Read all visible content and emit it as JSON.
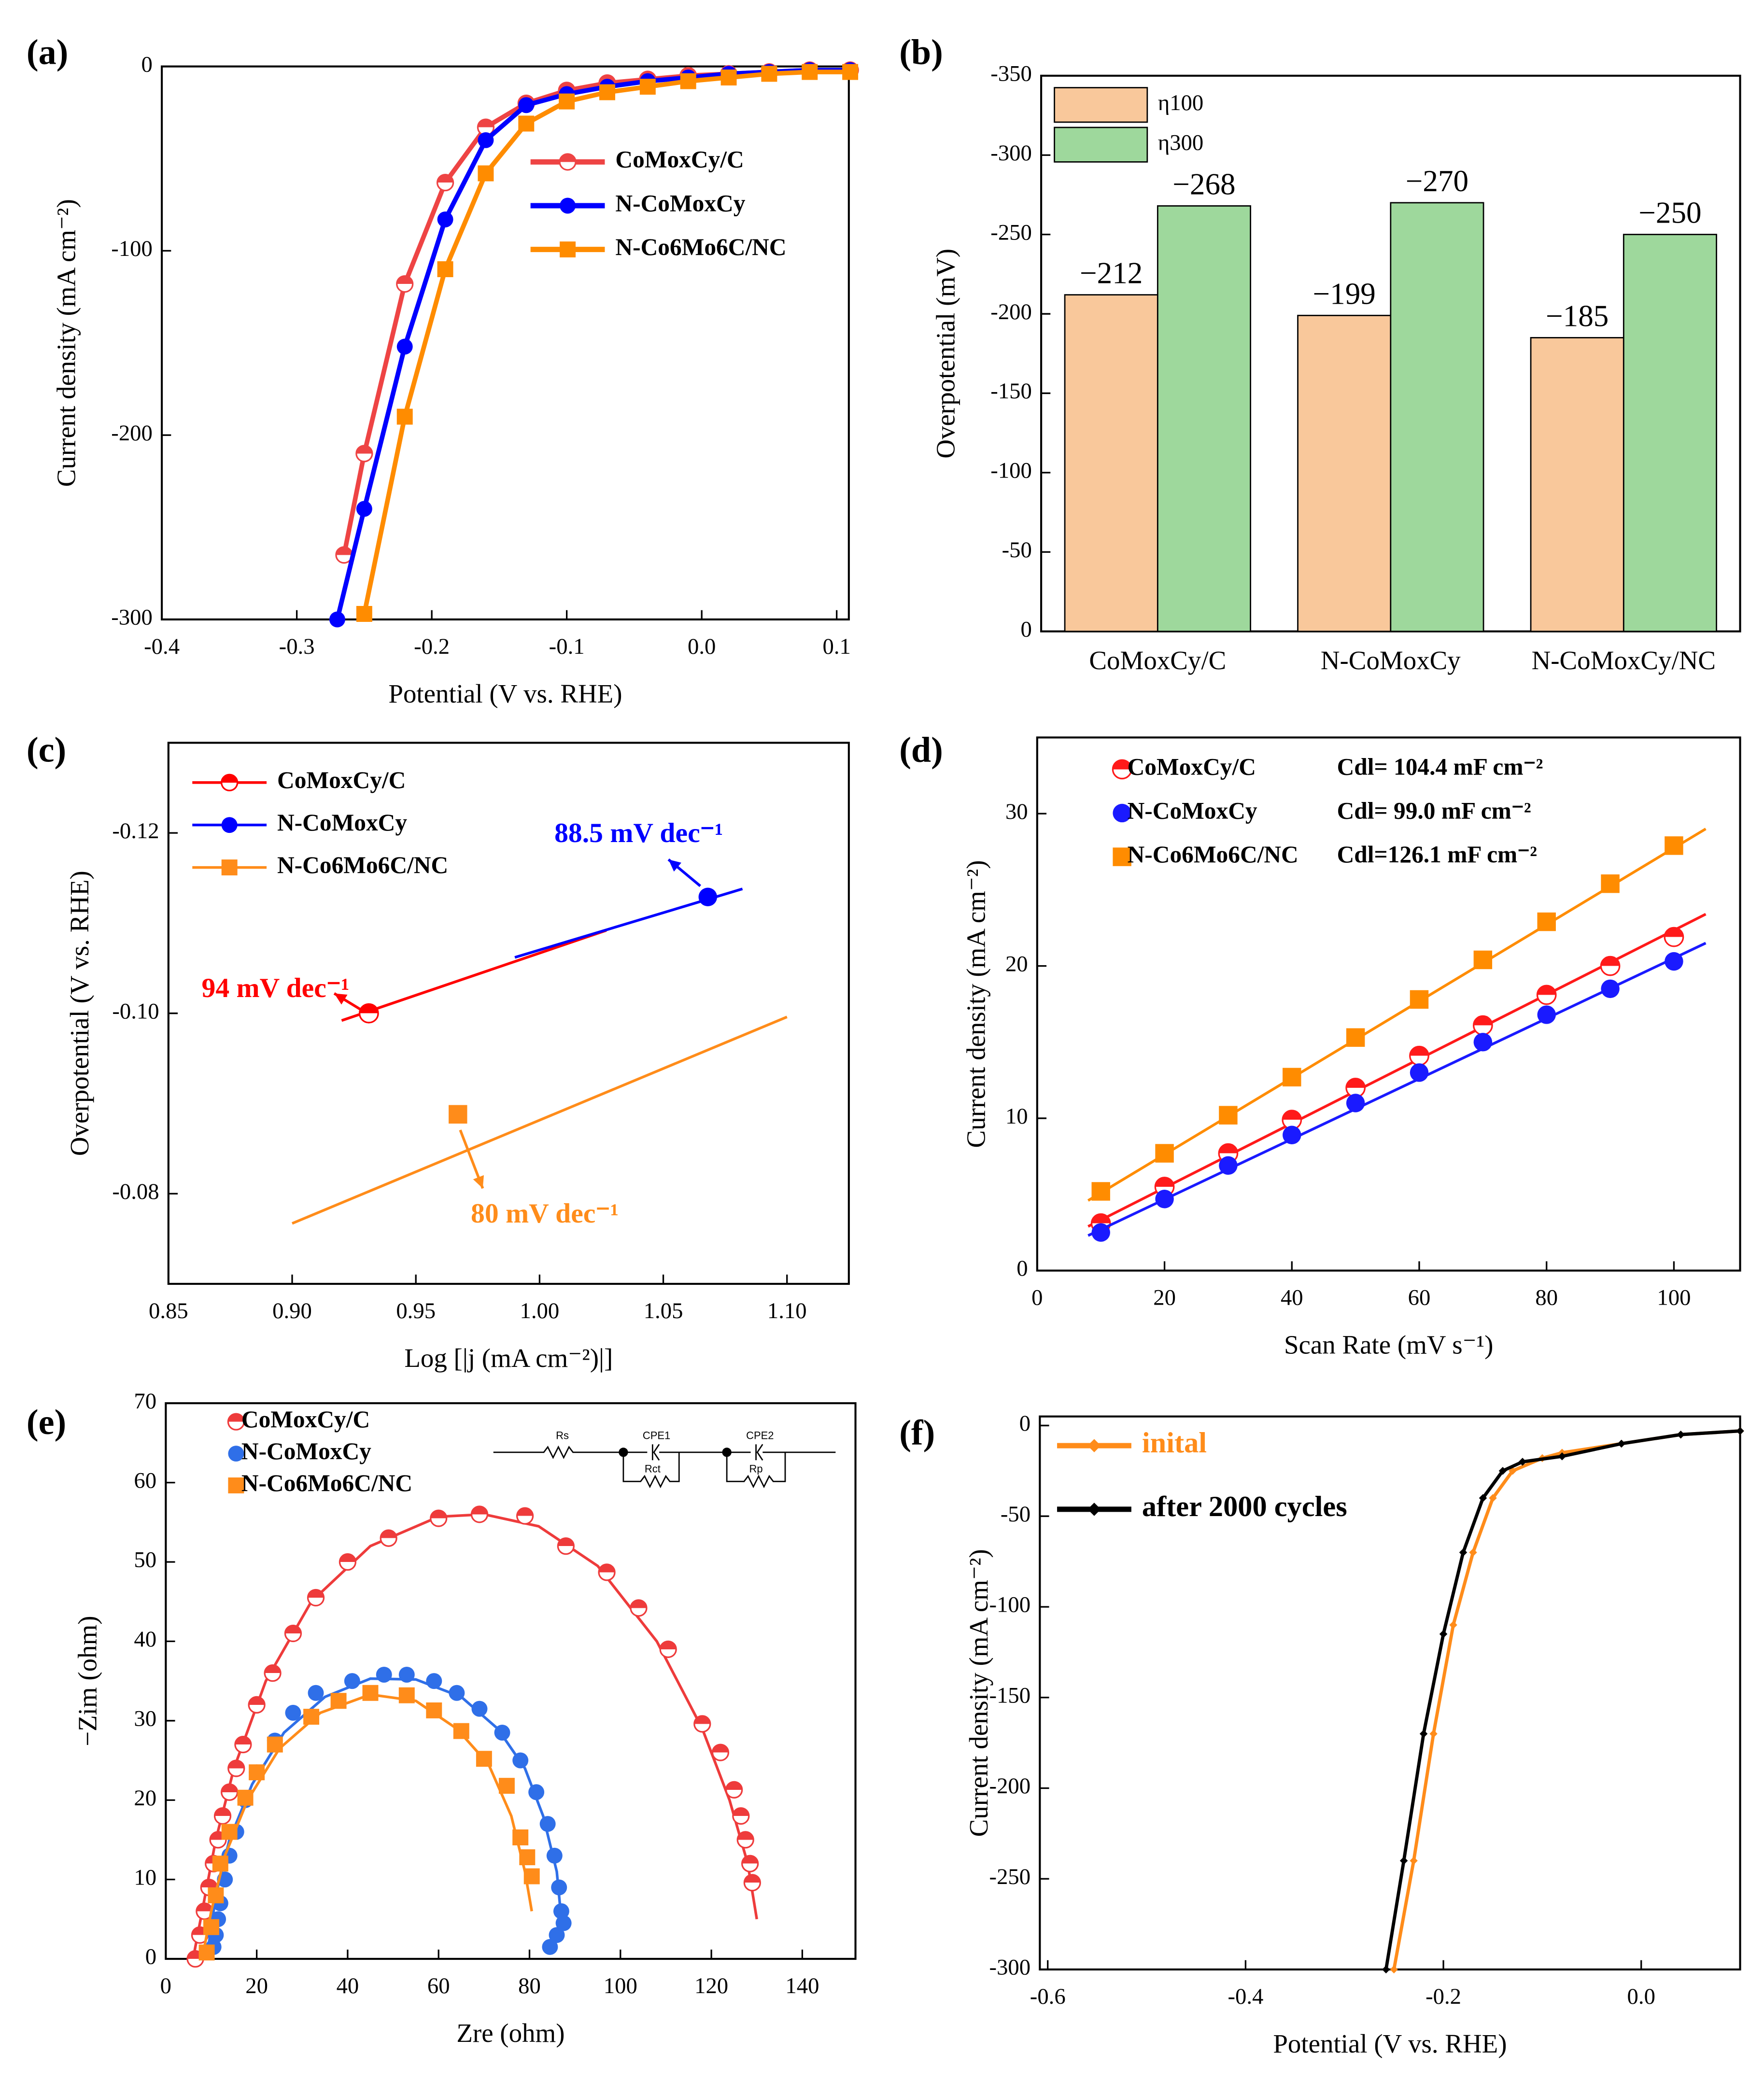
{
  "chart_data": [
    {
      "type": "line",
      "panel": "(a)",
      "xlabel": "Potential (V vs. RHE)",
      "ylabel": "Current density (mA cm⁻²)",
      "xlim": [
        -0.4,
        0.109
      ],
      "ylim": [
        -300,
        0
      ],
      "xticks": [
        -0.4,
        -0.3,
        -0.2,
        -0.1,
        {
          "value": 0,
          "label": "0.0"
        },
        0.1
      ],
      "yticks": [
        -300,
        -200,
        -100,
        0
      ],
      "series": [
        {
          "name": "CoMoxCy/C",
          "color": "#ee4444",
          "marker": "half",
          "x": [
            -0.265,
            -0.25,
            -0.22,
            -0.19,
            -0.16,
            -0.13,
            -0.1,
            -0.07,
            -0.04,
            -0.01,
            0.02,
            0.05,
            0.08,
            0.11
          ],
          "values": [
            -265,
            -210,
            -118,
            -63,
            -33,
            -20,
            -13,
            -9,
            -7,
            -5,
            -4,
            -3,
            -2,
            -2
          ]
        },
        {
          "name": "N-CoMoxCy",
          "color": "#0000ff",
          "marker": "circle",
          "x": [
            -0.27,
            -0.25,
            -0.22,
            -0.19,
            -0.16,
            -0.13,
            -0.1,
            -0.07,
            -0.04,
            -0.01,
            0.02,
            0.05,
            0.08,
            0.11
          ],
          "values": [
            -300,
            -240,
            -152,
            -83,
            -40,
            -21,
            -15,
            -11,
            -8,
            -6,
            -4,
            -3,
            -2,
            -2
          ]
        },
        {
          "name": "N-Co6Mo6C/NC",
          "color": "#ff8c00",
          "marker": "square",
          "x": [
            -0.25,
            -0.22,
            -0.19,
            -0.16,
            -0.13,
            -0.1,
            -0.07,
            -0.04,
            -0.01,
            0.02,
            0.05,
            0.08,
            0.11
          ],
          "values": [
            -297,
            -190,
            -110,
            -58,
            -31,
            -19,
            -14,
            -11,
            -8,
            -6,
            -4,
            -3,
            -3
          ]
        }
      ]
    },
    {
      "type": "bar",
      "panel": "(b)",
      "ylabel": "Overpotential  (mV)",
      "categories": [
        "CoMoxCy/C",
        "N-CoMoxCy",
        "N-CoMoxCy/NC"
      ],
      "ylim": [
        0,
        -350
      ],
      "yticks": [
        0,
        -50,
        -100,
        -150,
        -200,
        -250,
        -300,
        -350
      ],
      "series": [
        {
          "name": "η100",
          "color": "#f9c89b",
          "values": [
            -212,
            -199,
            -185
          ],
          "value_labels": [
            "−212",
            "−199",
            "−185"
          ]
        },
        {
          "name": "η300",
          "color": "#9ed89c",
          "values": [
            -268,
            -270,
            -250
          ],
          "value_labels": [
            "−268",
            "−270",
            "−250"
          ]
        }
      ]
    },
    {
      "type": "line",
      "panel": "(c)",
      "xlabel": "Log [|j (mA cm⁻²)|]",
      "ylabel": "Overpotential (V vs. RHE)",
      "xlim": [
        0.85,
        1.125
      ],
      "ylim": [
        -0.07,
        -0.13
      ],
      "xticks": [
        0.85,
        {
          "value": 0.9,
          "label": "0.90"
        },
        0.95,
        {
          "value": 1,
          "label": "1.00"
        },
        1.05,
        {
          "value": 1.1,
          "label": "1.10"
        }
      ],
      "yticks": [
        -0.08,
        {
          "value": -0.1,
          "label": "-0.10"
        },
        -0.12
      ],
      "series": [
        {
          "name": "CoMoxCy/C",
          "color": "#ff0000",
          "marker": "half",
          "x": [
            0.92,
            1.027
          ],
          "values": [
            -0.0992,
            -0.1092
          ],
          "point": {
            "x": 0.931,
            "y": -0.1
          }
        },
        {
          "name": "N-CoMoxCy",
          "color": "#0000ff",
          "marker": "circle",
          "x": [
            0.99,
            1.082
          ],
          "values": [
            -0.1062,
            -0.1138
          ],
          "point": {
            "x": 1.068,
            "y": -0.1129
          }
        },
        {
          "name": "N-Co6Mo6C/NC",
          "color": "#ff8c1a",
          "marker": "square",
          "x": [
            0.9,
            1.1
          ],
          "values": [
            -0.0767,
            -0.0996
          ],
          "point": {
            "x": 0.967,
            "y": -0.0888
          }
        }
      ],
      "annotations": [
        {
          "text": "94 mV dec⁻¹",
          "color": "#ff0000"
        },
        {
          "text": "88.5 mV dec⁻¹",
          "color": "#0000ff"
        },
        {
          "text": "80 mV dec⁻¹",
          "color": "#ff8c1a"
        }
      ]
    },
    {
      "type": "scatter",
      "panel": "(d)",
      "xlabel": "Scan Rate (mV s⁻¹)",
      "ylabel": "Current density (mA cm⁻²)",
      "xlim": [
        0,
        110.4
      ],
      "ylim": [
        0,
        35
      ],
      "xticks": [
        0,
        20,
        40,
        60,
        80,
        100
      ],
      "yticks": [
        0,
        10,
        20,
        30
      ],
      "series": [
        {
          "name": "CoMoxCy/C",
          "note": "Cdl= 104.4 mF cm⁻²",
          "color": "#ff1a1a",
          "marker": "half",
          "x": [
            10,
            20,
            30,
            40,
            50,
            60,
            70,
            80,
            90,
            100
          ],
          "values": [
            3.1,
            5.5,
            7.7,
            9.9,
            12.0,
            14.1,
            16.1,
            18.1,
            20.0,
            21.9
          ],
          "fit": {
            "x": [
              8,
              105
            ],
            "values": [
              2.9,
              23.4
            ]
          }
        },
        {
          "name": "N-CoMoxCy",
          "note": "Cdl= 99.0 mF cm⁻²",
          "color": "#1a1aff",
          "marker": "circle",
          "x": [
            10,
            20,
            30,
            40,
            50,
            60,
            70,
            80,
            90,
            100
          ],
          "values": [
            2.5,
            4.7,
            6.9,
            8.9,
            11.0,
            13.0,
            15.0,
            16.8,
            18.5,
            20.3
          ],
          "fit": {
            "x": [
              8,
              105
            ],
            "values": [
              2.3,
              21.5
            ]
          }
        },
        {
          "name": "N-Co6Mo6C/NC",
          "note": "Cdl=126.1 mF cm⁻²",
          "color": "#ff8c00",
          "marker": "square",
          "x": [
            10,
            20,
            30,
            40,
            50,
            60,
            70,
            80,
            90,
            100
          ],
          "values": [
            5.2,
            7.7,
            10.2,
            12.7,
            15.3,
            17.8,
            20.4,
            22.9,
            25.4,
            27.9
          ],
          "fit": {
            "x": [
              8,
              105
            ],
            "values": [
              4.6,
              29.0
            ]
          }
        }
      ]
    },
    {
      "type": "scatter",
      "panel": "(e)",
      "xlabel": "Zre (ohm)",
      "ylabel": "−Zim (ohm)",
      "xlim": [
        0,
        151.7
      ],
      "ylim": [
        0,
        70
      ],
      "xticks": [
        0,
        20,
        40,
        60,
        80,
        100,
        120,
        140
      ],
      "yticks": [
        0,
        10,
        20,
        30,
        40,
        50,
        60,
        70
      ],
      "circuit": [
        "Rs",
        "CPE1",
        "Rct",
        "CPE2",
        "Rp"
      ],
      "series": [
        {
          "name": "CoMoxCy/C",
          "color": "#ee3b3b",
          "marker": "half",
          "x": [
            6.5,
            7.5,
            8.5,
            9.5,
            10.5,
            11.5,
            12.5,
            14,
            15.5,
            17,
            20,
            23.5,
            28,
            33,
            40,
            49,
            60,
            69,
            79,
            88,
            97,
            104,
            110.5,
            118,
            122,
            125,
            126.5,
            127.5,
            128.5,
            129
          ],
          "values": [
            0,
            3,
            6,
            9,
            12,
            15,
            18,
            21,
            24,
            27,
            32,
            36,
            41,
            45.5,
            50,
            53,
            55.5,
            56,
            55.8,
            52,
            48.7,
            44.2,
            39,
            29.6,
            26,
            21.3,
            18,
            15,
            12,
            9.6
          ],
          "fit": {
            "x": [
              6,
              8,
              11,
              15,
              22,
              32,
              45,
              60,
              70,
              82,
              95,
              108,
              118,
              124,
              128,
              130
            ],
            "values": [
              0,
              6,
              15,
              24,
              35,
              45,
              52,
              55.7,
              56,
              54.5,
              49.5,
              40,
              29,
              20,
              12,
              5
            ]
          }
        },
        {
          "name": "N-CoMoxCy",
          "color": "#2f6fe8",
          "marker": "circle",
          "x": [
            10.5,
            11,
            11.5,
            12,
            13,
            14,
            15.5,
            17.5,
            20,
            24,
            28,
            33,
            41,
            48,
            53,
            59,
            64,
            69,
            74,
            78,
            81.5,
            84,
            85.5,
            86.5,
            87,
            87.5,
            86,
            84.5
          ],
          "values": [
            1.5,
            3,
            5,
            7,
            10,
            13,
            16,
            20,
            23.5,
            27.5,
            31,
            33.5,
            35,
            35.8,
            35.8,
            35,
            33.5,
            31.5,
            28.5,
            25,
            21,
            17,
            13,
            9,
            6,
            4.5,
            3,
            1.5
          ],
          "fit": {
            "x": [
              9,
              11,
              14,
              19,
              26,
              35,
              45,
              55,
              65,
              73,
              79,
              83,
              86,
              87
            ],
            "values": [
              0,
              8,
              15,
              22,
              28.5,
              33,
              35.3,
              35.2,
              33,
              29,
              24,
              18,
              11,
              5
            ]
          }
        },
        {
          "name": "N-Co6Mo6C/NC",
          "color": "#ff8c1a",
          "marker": "square",
          "x": [
            9,
            10,
            11,
            12,
            14,
            17.5,
            20,
            24,
            32,
            38,
            45,
            53,
            59,
            65,
            70,
            75,
            78,
            79.5,
            80.5
          ],
          "values": [
            0.8,
            4,
            8,
            12,
            16,
            20.3,
            23.5,
            27,
            30.5,
            32.5,
            33.5,
            33.2,
            31.3,
            28.7,
            25.2,
            21.8,
            15.3,
            12.8,
            10.4
          ],
          "fit": {
            "x": [
              8,
              10,
              13,
              18,
              25,
              34,
              45,
              55,
              64,
              71,
              76,
              79,
              80.5
            ],
            "values": [
              0,
              6,
              13,
              20,
              26.5,
              31,
              33.3,
              32.5,
              29,
              24.5,
              18,
              11,
              6
            ]
          }
        }
      ]
    },
    {
      "type": "line",
      "panel": "(f)",
      "xlabel": "Potential (V vs. RHE)",
      "ylabel": "Current density (mA cm⁻²)",
      "xlim": [
        -0.608,
        0.1
      ],
      "ylim": [
        -300,
        5
      ],
      "xticks": [
        -0.6,
        -0.4,
        -0.2,
        {
          "value": 0,
          "label": "0.0"
        }
      ],
      "yticks": [
        -300,
        -250,
        -200,
        -150,
        -100,
        -50,
        0
      ],
      "series": [
        {
          "name": "inital",
          "color": "#ff8c1a",
          "marker": "diamond",
          "x": [
            -0.25,
            -0.23,
            -0.21,
            -0.19,
            -0.17,
            -0.15,
            -0.13,
            -0.1,
            -0.08,
            -0.02,
            0.04,
            0.1
          ],
          "values": [
            -300,
            -240,
            -170,
            -110,
            -70,
            -40,
            -25,
            -18,
            -15,
            -10,
            -5,
            -3
          ]
        },
        {
          "name": "after 2000 cycles",
          "color": "#000000",
          "marker": "diamond",
          "x": [
            -0.258,
            -0.24,
            -0.22,
            -0.2,
            -0.18,
            -0.16,
            -0.14,
            -0.12,
            -0.08,
            -0.02,
            0.04,
            0.1
          ],
          "values": [
            -300,
            -240,
            -170,
            -115,
            -70,
            -40,
            -25,
            -20,
            -17,
            -10,
            -5,
            -3
          ]
        }
      ]
    }
  ]
}
